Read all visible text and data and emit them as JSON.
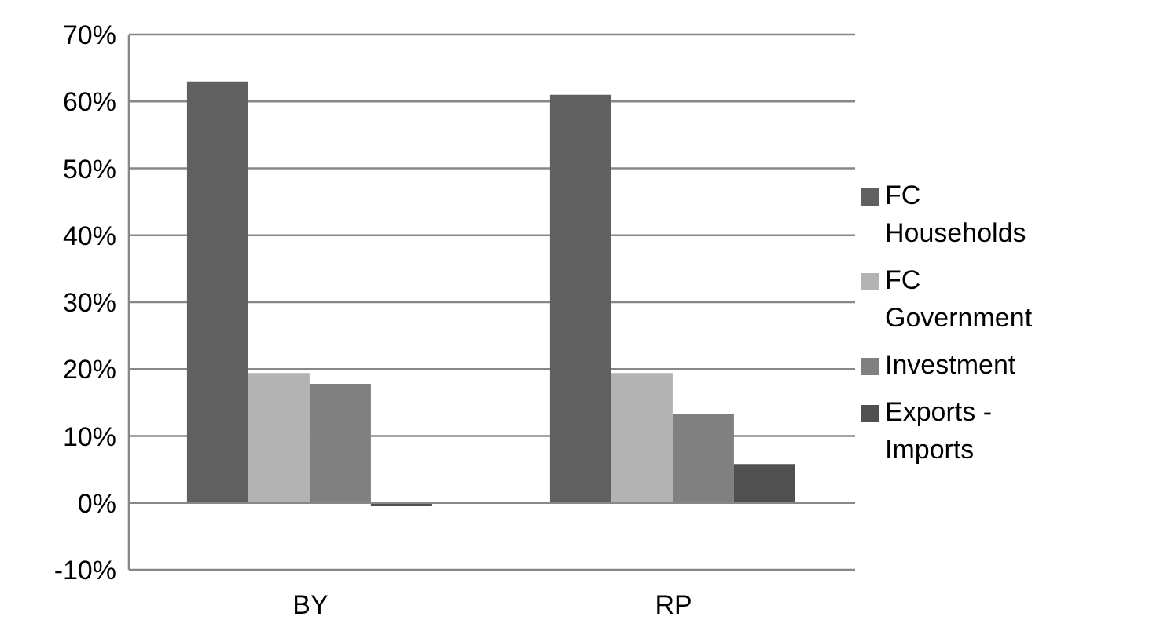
{
  "chart_data": {
    "type": "bar",
    "categories": [
      "BY",
      "RP"
    ],
    "series": [
      {
        "name": "FC Households",
        "color": "#606060",
        "values": [
          63,
          61
        ]
      },
      {
        "name": "FC Government",
        "color": "#b3b3b3",
        "values": [
          19.4,
          19.4
        ]
      },
      {
        "name": "Investment",
        "color": "#808080",
        "values": [
          17.8,
          13.3
        ]
      },
      {
        "name": "Exports - Imports",
        "color": "#505050",
        "values": [
          -0.5,
          5.8
        ]
      }
    ],
    "ylim": [
      -10,
      70
    ],
    "yticks": [
      {
        "value": -10,
        "label": "-10%"
      },
      {
        "value": 0,
        "label": "0%"
      },
      {
        "value": 10,
        "label": "10%"
      },
      {
        "value": 20,
        "label": "20%"
      },
      {
        "value": 30,
        "label": "30%"
      },
      {
        "value": 40,
        "label": "40%"
      },
      {
        "value": 50,
        "label": "50%"
      },
      {
        "value": 60,
        "label": "60%"
      },
      {
        "value": 70,
        "label": "70%"
      }
    ],
    "grid": "y",
    "legend": "right"
  }
}
